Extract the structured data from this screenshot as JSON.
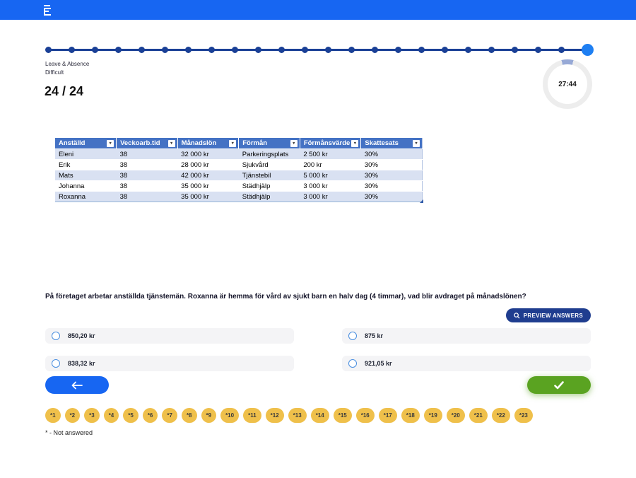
{
  "stepper": {
    "total": 24,
    "active": 24
  },
  "quiz": {
    "category": "Leave & Absence",
    "difficulty": "Difficult",
    "counter": "24 / 24",
    "timer": "27:44"
  },
  "table": {
    "headers": [
      "Anställd",
      "Veckoarb.tid",
      "Månadslön",
      "Förmån",
      "Förmånsvärde",
      "Skattesats"
    ],
    "rows": [
      [
        "Eleni",
        "38",
        "32 000 kr",
        "Parkeringsplats",
        "2 500 kr",
        "30%"
      ],
      [
        "Erik",
        "38",
        "28 000 kr",
        "Sjukvård",
        "200 kr",
        "30%"
      ],
      [
        "Mats",
        "38",
        "42 000 kr",
        "Tjänstebil",
        "5 000 kr",
        "30%"
      ],
      [
        "Johanna",
        "38",
        "35 000 kr",
        "Städhjälp",
        "3 000 kr",
        "30%"
      ],
      [
        "Roxanna",
        "38",
        "35 000 kr",
        "Städhjälp",
        "3 000 kr",
        "30%"
      ]
    ]
  },
  "question": {
    "text": "På företaget arbetar anställda tjänstemän. Roxanna är hemma för vård av sjukt barn en halv dag (4 timmar), vad blir avdraget på månadslönen?",
    "preview_label": "PREVIEW ANSWERS"
  },
  "options": [
    {
      "label": "850,20 kr",
      "selected": false
    },
    {
      "label": "875 kr",
      "selected": false
    },
    {
      "label": "838,32 kr",
      "selected": false
    },
    {
      "label": "921,05 kr",
      "selected": false
    }
  ],
  "badges": [
    "*1",
    "*2",
    "*3",
    "*4",
    "*5",
    "*6",
    "*7",
    "*8",
    "*9",
    "*10",
    "*11",
    "*12",
    "*13",
    "*14",
    "*15",
    "*16",
    "*17",
    "*18",
    "*19",
    "*20",
    "*21",
    "*22",
    "*23"
  ],
  "footnote": "* - Not answered",
  "colors": {
    "brand_blue": "#1766F2",
    "stepper_navy": "#1A4096",
    "active_dot": "#1E7FF2",
    "timer_arc": "#97A9D6",
    "table_header": "#4472C4",
    "table_band": "#D9E1F2",
    "preview_navy": "#1F3D8F",
    "radio_blue": "#4a8fe0",
    "submit_green": "#5AA321",
    "badge_gold": "#EFC04B"
  }
}
